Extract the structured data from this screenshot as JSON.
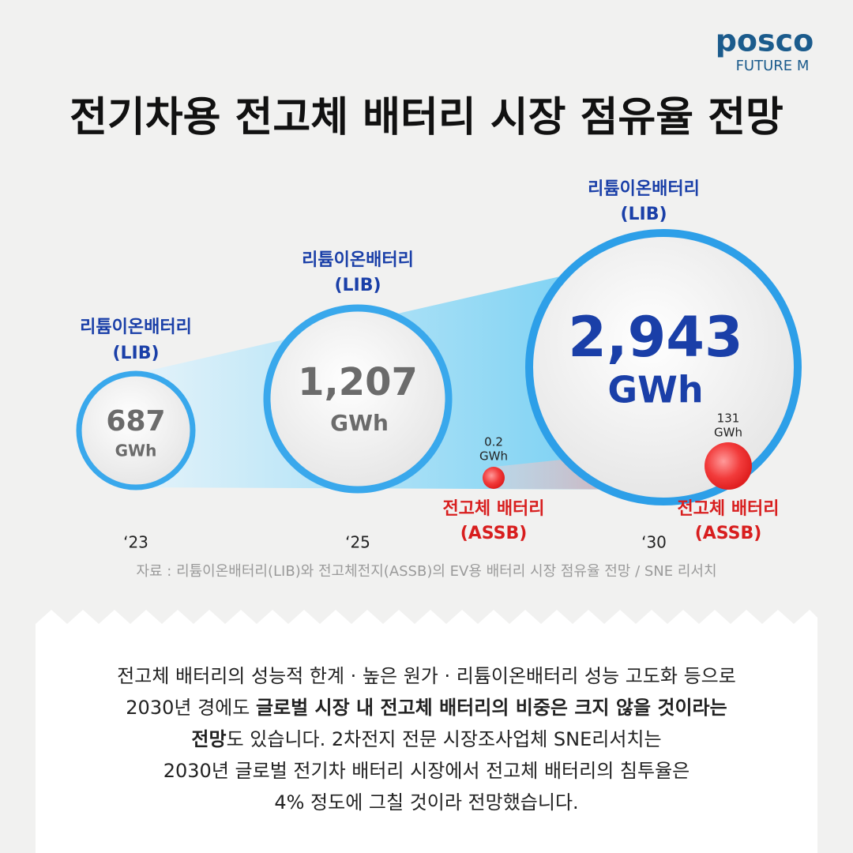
{
  "logo": {
    "brand": "posco",
    "sub": "FUTURE M"
  },
  "title": "전기차용 전고체 배터리 시장 점유율 전망",
  "years": [
    {
      "year": "‘23",
      "lib": {
        "label": "리튬이온배터리",
        "abbr": "(LIB)",
        "value": "687",
        "unit": "GWh"
      }
    },
    {
      "year": "‘25",
      "lib": {
        "label": "리튬이온배터리",
        "abbr": "(LIB)",
        "value": "1,207",
        "unit": "GWh"
      },
      "assb": {
        "label": "전고체 배터리",
        "abbr": "(ASSB)",
        "value": "0.2",
        "unit": "GWh"
      }
    },
    {
      "year": "‘30",
      "lib": {
        "label": "리튬이온배터리",
        "abbr": "(LIB)",
        "value": "2,943",
        "unit": "GWh"
      },
      "assb": {
        "label": "전고체 배터리",
        "abbr": "(ASSB)",
        "value": "131",
        "unit": "GWh"
      }
    }
  ],
  "source": "자료 : 리튬이온배터리(LIB)와 전고체전지(ASSB)의 EV용 배터리 시장 점유율 전망 / SNE 리서치",
  "body": {
    "lines": [
      [
        "전고체 배터리의 성능적 한계 · 높은 원가 · 리튬이온배터리 성능 고도화 등으로"
      ],
      [
        "2030년 경에도 ",
        "글로벌 시장 내 전고체 배터리의 비중은 크지 않을 것이라는"
      ],
      [
        "전망",
        "도 있습니다. 2차전지 전문 시장조사업체 SNE리서치는"
      ],
      [
        "2030년 글로벌 전기차 배터리 시장에서 전고체 배터리의 침투율은"
      ],
      [
        "4% 정도에 그칠 것이라 전망했습니다."
      ]
    ]
  }
}
